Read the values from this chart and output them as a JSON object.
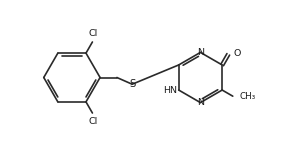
{
  "bg_color": "#ffffff",
  "line_color": "#2a2a2a",
  "line_width": 1.2,
  "font_size": 6.8,
  "font_color": "#1a1a1a",
  "xlim": [
    -0.5,
    9.5
  ],
  "ylim": [
    0.2,
    5.2
  ]
}
